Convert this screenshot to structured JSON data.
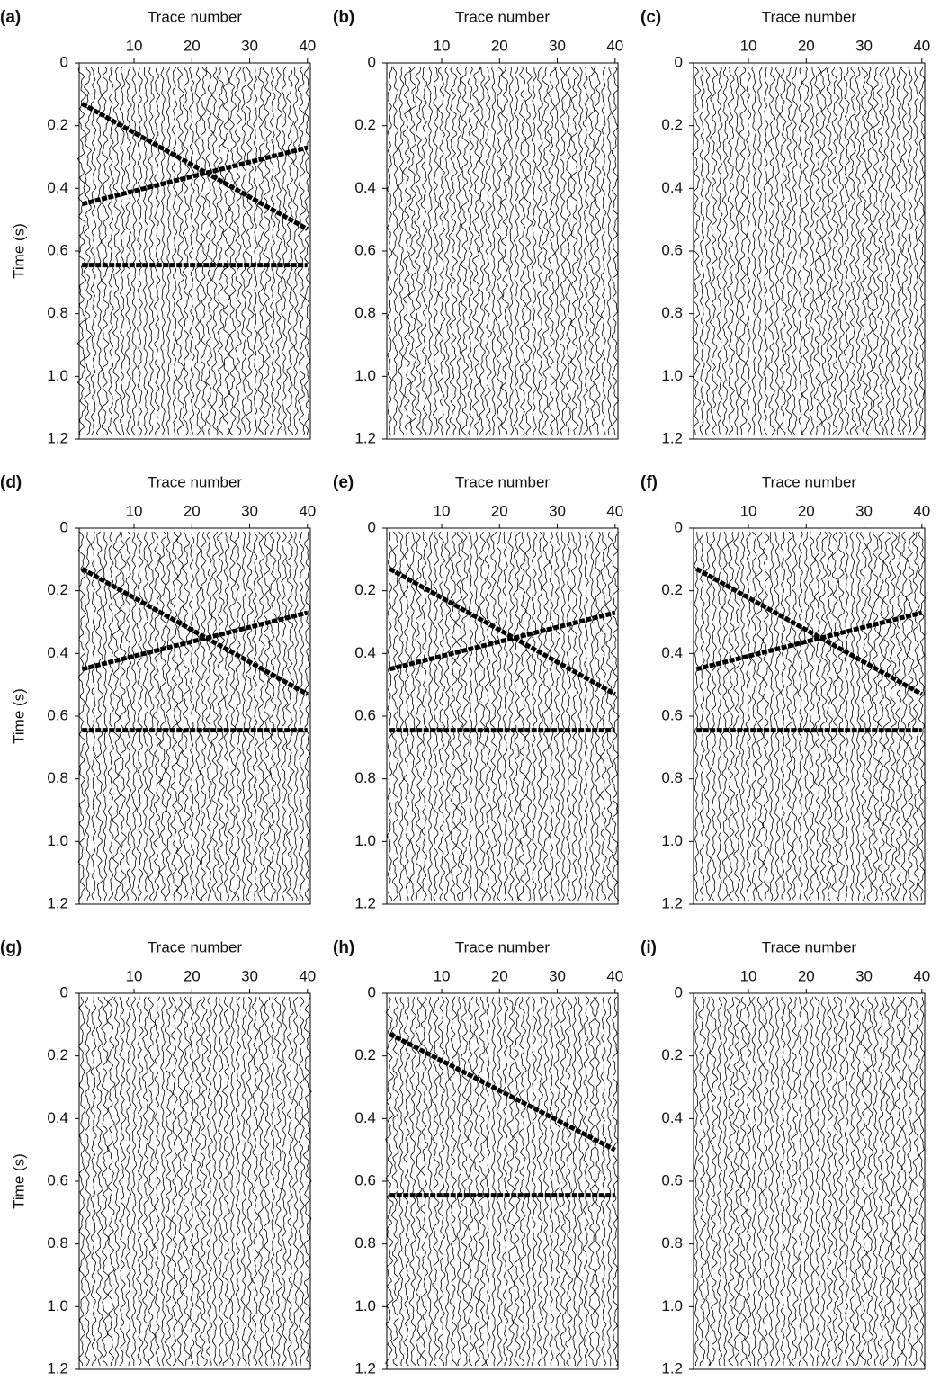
{
  "chart_data": [
    {
      "type": "wiggle",
      "label": "(a)",
      "xlabel": "Trace number",
      "ylabel": "Time (s)",
      "xlim": [
        0.5,
        40.5
      ],
      "ylim": [
        0,
        1.2
      ],
      "y_inverted": true,
      "xaxis_position": "top",
      "color": "#000000",
      "xticks": [
        10,
        20,
        30,
        40
      ],
      "yticks": [
        0,
        0.2,
        0.4,
        0.6,
        0.8,
        {
          "value": 1,
          "label": "1.0"
        },
        1.2
      ],
      "series": [
        {
          "x": [
            1,
            40
          ],
          "values": [
            0.13,
            0.53
          ]
        },
        {
          "x": [
            1,
            40
          ],
          "values": [
            0.45,
            0.27
          ]
        },
        {
          "x": [
            1,
            40
          ],
          "values": [
            0.645,
            0.645
          ]
        }
      ]
    },
    {
      "type": "wiggle",
      "label": "(b)",
      "xlabel": "Trace number",
      "xlim": [
        0.5,
        40.5
      ],
      "ylim": [
        0,
        1.2
      ],
      "y_inverted": true,
      "xaxis_position": "top",
      "color": "#000000",
      "xticks": [
        10,
        20,
        30,
        40
      ],
      "yticks": [
        0,
        0.2,
        0.4,
        0.6,
        0.8,
        {
          "value": 1,
          "label": "1.0"
        },
        1.2
      ],
      "series": []
    },
    {
      "type": "wiggle",
      "label": "(c)",
      "xlabel": "Trace number",
      "xlim": [
        0.5,
        40.5
      ],
      "ylim": [
        0,
        1.2
      ],
      "y_inverted": true,
      "xaxis_position": "top",
      "color": "#000000",
      "xticks": [
        10,
        20,
        30,
        40
      ],
      "yticks": [
        0,
        0.2,
        0.4,
        0.6,
        0.8,
        {
          "value": 1,
          "label": "1.0"
        },
        1.2
      ],
      "series": []
    },
    {
      "type": "wiggle",
      "label": "(d)",
      "xlabel": "Trace number",
      "ylabel": "Time (s)",
      "xlim": [
        0.5,
        40.5
      ],
      "ylim": [
        0,
        1.2
      ],
      "y_inverted": true,
      "xaxis_position": "top",
      "color": "#000000",
      "xticks": [
        10,
        20,
        30,
        40
      ],
      "yticks": [
        0,
        0.2,
        0.4,
        0.6,
        0.8,
        {
          "value": 1,
          "label": "1.0"
        },
        1.2
      ],
      "series": [
        {
          "x": [
            1,
            40
          ],
          "values": [
            0.13,
            0.53
          ]
        },
        {
          "x": [
            1,
            40
          ],
          "values": [
            0.45,
            0.27
          ]
        },
        {
          "x": [
            1,
            40
          ],
          "values": [
            0.645,
            0.645
          ]
        }
      ]
    },
    {
      "type": "wiggle",
      "label": "(e)",
      "xlabel": "Trace number",
      "xlim": [
        0.5,
        40.5
      ],
      "ylim": [
        0,
        1.2
      ],
      "y_inverted": true,
      "xaxis_position": "top",
      "color": "#000000",
      "xticks": [
        10,
        20,
        30,
        40
      ],
      "yticks": [
        0,
        0.2,
        0.4,
        0.6,
        0.8,
        {
          "value": 1,
          "label": "1.0"
        },
        1.2
      ],
      "series": [
        {
          "x": [
            1,
            40
          ],
          "values": [
            0.13,
            0.53
          ]
        },
        {
          "x": [
            1,
            40
          ],
          "values": [
            0.45,
            0.27
          ]
        },
        {
          "x": [
            1,
            40
          ],
          "values": [
            0.645,
            0.645
          ]
        }
      ]
    },
    {
      "type": "wiggle",
      "label": "(f)",
      "xlabel": "Trace number",
      "xlim": [
        0.5,
        40.5
      ],
      "ylim": [
        0,
        1.2
      ],
      "y_inverted": true,
      "xaxis_position": "top",
      "color": "#000000",
      "xticks": [
        10,
        20,
        30,
        40
      ],
      "yticks": [
        0,
        0.2,
        0.4,
        0.6,
        0.8,
        {
          "value": 1,
          "label": "1.0"
        },
        1.2
      ],
      "series": [
        {
          "x": [
            1,
            40
          ],
          "values": [
            0.13,
            0.53
          ]
        },
        {
          "x": [
            1,
            40
          ],
          "values": [
            0.45,
            0.27
          ]
        },
        {
          "x": [
            1,
            40
          ],
          "values": [
            0.645,
            0.645
          ]
        }
      ]
    },
    {
      "type": "wiggle",
      "label": "(g)",
      "xlabel": "Trace number",
      "ylabel": "Time (s)",
      "xlim": [
        0.5,
        40.5
      ],
      "ylim": [
        0,
        1.2
      ],
      "y_inverted": true,
      "xaxis_position": "top",
      "color": "#000000",
      "xticks": [
        10,
        20,
        30,
        40
      ],
      "yticks": [
        0,
        0.2,
        0.4,
        0.6,
        0.8,
        {
          "value": 1,
          "label": "1.0"
        },
        1.2
      ],
      "series": []
    },
    {
      "type": "wiggle",
      "label": "(h)",
      "xlabel": "Trace number",
      "xlim": [
        0.5,
        40.5
      ],
      "ylim": [
        0,
        1.2
      ],
      "y_inverted": true,
      "xaxis_position": "top",
      "color": "#000000",
      "xticks": [
        10,
        20,
        30,
        40
      ],
      "yticks": [
        0,
        0.2,
        0.4,
        0.6,
        0.8,
        {
          "value": 1,
          "label": "1.0"
        },
        1.2
      ],
      "series": [
        {
          "x": [
            1,
            40
          ],
          "values": [
            0.13,
            0.5
          ]
        },
        {
          "x": [
            1,
            40
          ],
          "values": [
            0.645,
            0.645
          ]
        }
      ]
    },
    {
      "type": "wiggle",
      "label": "(i)",
      "xlabel": "Trace number",
      "xlim": [
        0.5,
        40.5
      ],
      "ylim": [
        0,
        1.2
      ],
      "y_inverted": true,
      "xaxis_position": "top",
      "color": "#000000",
      "xticks": [
        10,
        20,
        30,
        40
      ],
      "yticks": [
        0,
        0.2,
        0.4,
        0.6,
        0.8,
        {
          "value": 1,
          "label": "1.0"
        },
        1.2
      ],
      "series": []
    }
  ]
}
